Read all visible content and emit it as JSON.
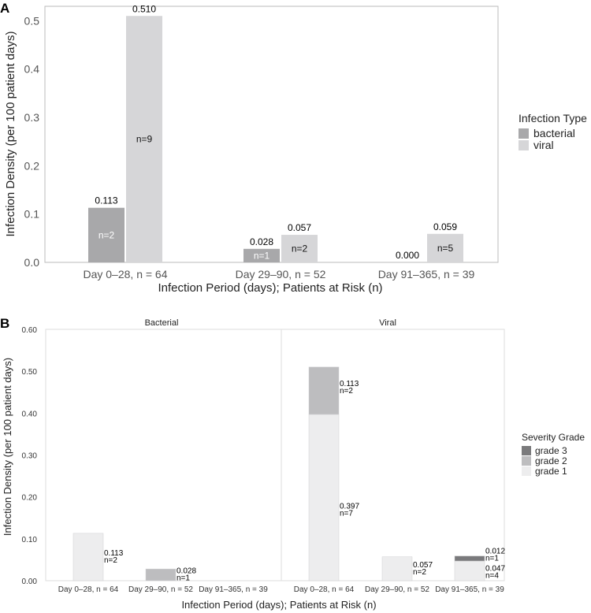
{
  "chart_data": [
    {
      "panel": "A",
      "type": "bar",
      "title": "",
      "xlabel": "Infection Period (days); Patients at Risk (n)",
      "ylabel": "Infection Density (per 100 patient days)",
      "ylim": [
        0,
        0.53
      ],
      "yticks": [
        "0.0",
        "0.1",
        "0.2",
        "0.3",
        "0.4",
        "0.5"
      ],
      "ytick_values": [
        0,
        0.1,
        0.2,
        0.3,
        0.4,
        0.5
      ],
      "categories": [
        "Day 0–28, n = 64",
        "Day 29–90, n = 52",
        "Day 91–365, n = 39"
      ],
      "legend_title": "Infection Type",
      "series": [
        {
          "name": "bacterial",
          "color": "#a8a8aa",
          "values": [
            0.113,
            0.028,
            0.0
          ],
          "value_labels": [
            "0.113",
            "0.028",
            "0.000"
          ],
          "n_labels": [
            "n=2",
            "n=1",
            ""
          ]
        },
        {
          "name": "viral",
          "color": "#d6d6d8",
          "values": [
            0.51,
            0.057,
            0.059
          ],
          "value_labels": [
            "0.510",
            "0.057",
            "0.059"
          ],
          "n_labels": [
            "n=9",
            "n=2",
            "n=5"
          ]
        }
      ]
    },
    {
      "panel": "B",
      "type": "bar",
      "stacked": true,
      "xlabel": "Infection Period (days); Patients at Risk (n)",
      "ylabel": "Infection Density (per 100 patient days)",
      "ylim": [
        0,
        0.6
      ],
      "yticks": [
        "0.00",
        "0.10",
        "0.20",
        "0.30",
        "0.40",
        "0.50",
        "0.60"
      ],
      "ytick_values": [
        0,
        0.1,
        0.2,
        0.3,
        0.4,
        0.5,
        0.6
      ],
      "legend_title": "Severity Grade",
      "legend": [
        {
          "name": "grade 3",
          "color": "#7a7a7c"
        },
        {
          "name": "grade 2",
          "color": "#bdbdbf"
        },
        {
          "name": "grade 1",
          "color": "#ededee"
        }
      ],
      "facets": [
        {
          "name": "Bacterial",
          "categories": [
            "Day 0–28, n = 64",
            "Day 29–90, n = 52",
            "Day 91–365, n = 39"
          ],
          "bars": [
            {
              "segments": [
                {
                  "grade": "grade 1",
                  "value": 0.113,
                  "label": "0.113",
                  "n": "n=2"
                }
              ]
            },
            {
              "segments": [
                {
                  "grade": "grade 2",
                  "value": 0.028,
                  "label": "0.028",
                  "n": "n=1"
                }
              ]
            },
            {
              "segments": []
            }
          ]
        },
        {
          "name": "Viral",
          "categories": [
            "Day 0–28, n = 64",
            "Day 29–90, n = 52",
            "Day 91–365, n = 39"
          ],
          "bars": [
            {
              "segments": [
                {
                  "grade": "grade 1",
                  "value": 0.397,
                  "label": "0.397",
                  "n": "n=7"
                },
                {
                  "grade": "grade 2",
                  "value": 0.113,
                  "label": "0.113",
                  "n": "n=2"
                }
              ]
            },
            {
              "segments": [
                {
                  "grade": "grade 1",
                  "value": 0.057,
                  "label": "0.057",
                  "n": "n=2"
                }
              ]
            },
            {
              "segments": [
                {
                  "grade": "grade 1",
                  "value": 0.047,
                  "label": "0.047",
                  "n": "n=4"
                },
                {
                  "grade": "grade 3",
                  "value": 0.012,
                  "label": "0.012",
                  "n": "n=1"
                }
              ]
            }
          ]
        }
      ]
    }
  ]
}
